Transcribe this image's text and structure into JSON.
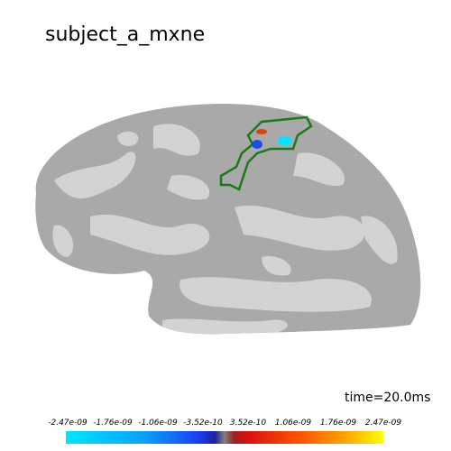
{
  "title": "subject_a_mxne",
  "time_label": "time=20.0ms",
  "colorbar": {
    "labels": [
      "-2.47e-09",
      "-1.76e-09",
      "-1.06e-09",
      "-3.52e-10",
      "3.52e-10",
      "1.06e-09",
      "1.76e-09",
      "2.47e-09"
    ]
  }
}
